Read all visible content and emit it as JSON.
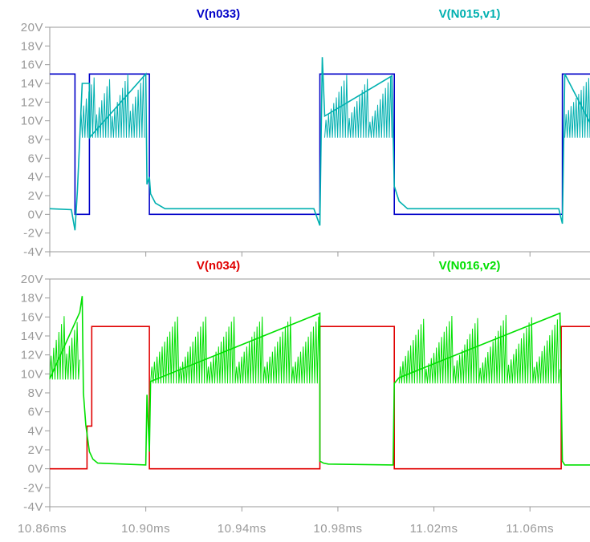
{
  "chart_data": [
    {
      "type": "line",
      "title": "",
      "xlabel": "",
      "ylabel": "",
      "xlim": [
        10.86,
        11.085
      ],
      "ylim": [
        -4,
        20
      ],
      "y_ticks": [
        "20V",
        "18V",
        "16V",
        "14V",
        "12V",
        "10V",
        "8V",
        "6V",
        "4V",
        "2V",
        "0V",
        "-2V",
        "-4V"
      ],
      "y_tick_values": [
        20,
        18,
        16,
        14,
        12,
        10,
        8,
        6,
        4,
        2,
        0,
        -2,
        -4
      ],
      "grid": false,
      "series": [
        {
          "name": "V(n033)",
          "color": "#0000c8",
          "x": [
            10.86,
            10.8705,
            10.8705,
            10.8765,
            10.8765,
            10.9015,
            10.9015,
            10.9725,
            10.9725,
            11.0035,
            11.0035,
            11.0735,
            11.0735,
            11.085
          ],
          "values": [
            15,
            15,
            0,
            0,
            15,
            15,
            0,
            0,
            15,
            15,
            0,
            0,
            15,
            15
          ]
        },
        {
          "name": "V(N015,v1)",
          "color": "#00b0b0",
          "x": [
            10.86,
            10.869,
            10.8705,
            10.8715,
            10.8725,
            10.8735,
            10.8765,
            10.8765,
            10.9,
            10.9005,
            10.9015,
            10.902,
            10.904,
            10.908,
            10.97,
            10.9725,
            10.9735,
            10.9745,
            11.0025,
            11.0035,
            11.0055,
            11.009,
            11.072,
            11.0735,
            11.0745,
            11.085
          ],
          "values": [
            0.6,
            0.5,
            -1.7,
            2.5,
            8.2,
            14,
            14,
            8.2,
            15,
            3.2,
            4,
            2.2,
            1.2,
            0.6,
            0.6,
            -1.2,
            16.8,
            10.5,
            14.8,
            3.0,
            1.4,
            0.6,
            0.6,
            -1.0,
            15.0,
            9.8
          ]
        }
      ]
    },
    {
      "type": "line",
      "title": "",
      "xlabel": "",
      "ylabel": "",
      "xlim": [
        10.86,
        11.085
      ],
      "ylim": [
        -4,
        20
      ],
      "x_ticks": [
        "10.86ms",
        "10.90ms",
        "10.94ms",
        "10.98ms",
        "11.02ms",
        "11.06ms"
      ],
      "x_tick_values": [
        10.86,
        10.9,
        10.94,
        10.98,
        11.02,
        11.06
      ],
      "y_ticks": [
        "20V",
        "18V",
        "16V",
        "14V",
        "12V",
        "10V",
        "8V",
        "6V",
        "4V",
        "2V",
        "0V",
        "-2V",
        "-4V"
      ],
      "y_tick_values": [
        20,
        18,
        16,
        14,
        12,
        10,
        8,
        6,
        4,
        2,
        0,
        -2,
        -4
      ],
      "grid": false,
      "series": [
        {
          "name": "V(n034)",
          "color": "#e00000",
          "x": [
            10.86,
            10.8755,
            10.8755,
            10.8775,
            10.8775,
            10.9015,
            10.9015,
            10.9725,
            10.9725,
            11.0035,
            11.0035,
            11.073,
            11.073,
            11.085
          ],
          "values": [
            0,
            0,
            4.5,
            4.5,
            15,
            15,
            0,
            0,
            15,
            15,
            0,
            0,
            15,
            15
          ]
        },
        {
          "name": "V(N016,v2)",
          "color": "#00e000",
          "x": [
            10.86,
            10.8725,
            10.8735,
            10.874,
            10.875,
            10.8765,
            10.878,
            10.88,
            10.9,
            10.9005,
            10.9015,
            10.902,
            10.9725,
            10.9725,
            10.974,
            10.976,
            11.003,
            11.0035,
            11.0055,
            11.0725,
            11.0735,
            11.0745,
            11.085
          ],
          "values": [
            9.5,
            16.5,
            18.2,
            8,
            4.6,
            1.8,
            1.0,
            0.6,
            0.4,
            7.8,
            1.8,
            9.2,
            16.4,
            0.8,
            0.6,
            0.5,
            0.4,
            9.0,
            9.6,
            16.4,
            0.8,
            0.4,
            0.4
          ]
        }
      ]
    }
  ]
}
